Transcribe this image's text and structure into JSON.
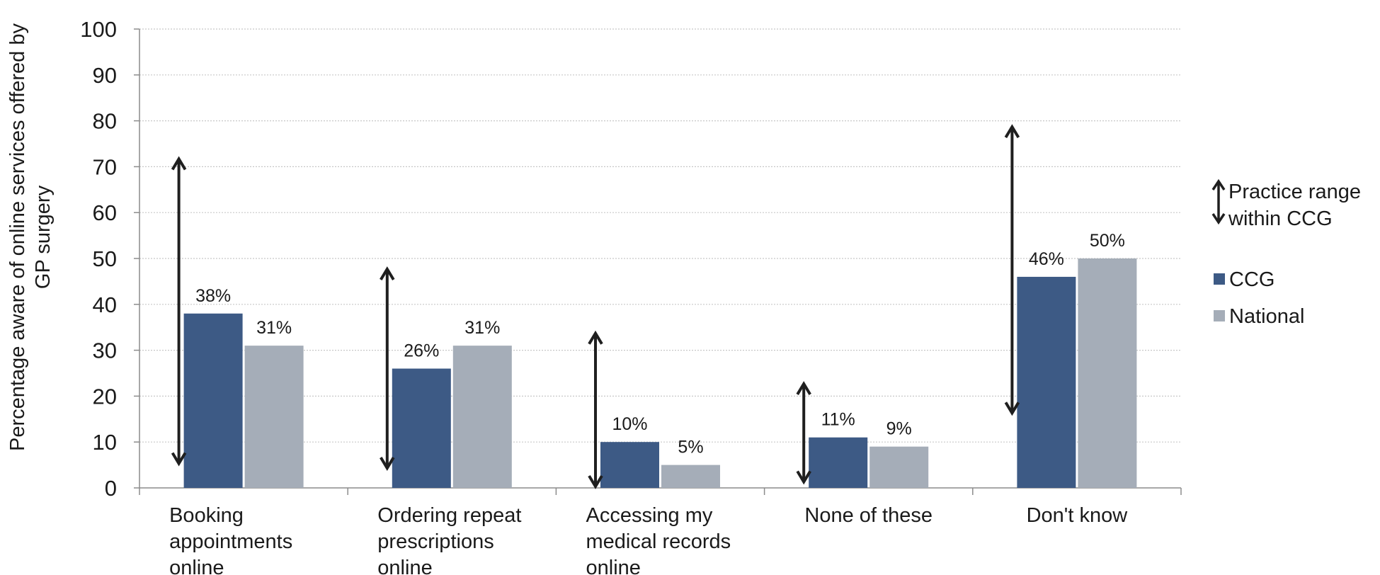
{
  "chart_data": {
    "type": "bar",
    "categories": [
      [
        "Booking",
        "appointments",
        "online"
      ],
      [
        "Ordering repeat",
        "prescriptions",
        "online"
      ],
      [
        "Accessing my",
        "medical records",
        "online"
      ],
      [
        "None of these"
      ],
      [
        "Don't know"
      ]
    ],
    "series": [
      {
        "name": "CCG",
        "values": [
          38,
          26,
          10,
          11,
          46
        ],
        "labels": [
          "38%",
          "26%",
          "10%",
          "11%",
          "46%"
        ],
        "color": "#3d5a85"
      },
      {
        "name": "National",
        "values": [
          31,
          31,
          5,
          9,
          50
        ],
        "labels": [
          "31%",
          "31%",
          "5%",
          "9%",
          "50%"
        ],
        "color": "#a5adb8"
      }
    ],
    "practice_range": [
      [
        5,
        72
      ],
      [
        4,
        48
      ],
      [
        0,
        34
      ],
      [
        1,
        23
      ],
      [
        16,
        79
      ]
    ],
    "ylabel_lines": [
      "Percentage aware of online services offered by",
      "GP surgery"
    ],
    "ylim": [
      0,
      100
    ],
    "yticks": [
      0,
      10,
      20,
      30,
      40,
      50,
      60,
      70,
      80,
      90,
      100
    ],
    "grid": true,
    "legend_position": "right",
    "legend": {
      "range_label_lines": [
        "Practice range",
        "within CCG"
      ],
      "ccg": "CCG",
      "national": "National"
    },
    "colors": {
      "ccg": "#3d5a85",
      "national": "#a5adb8",
      "arrow": "#1f1f1f",
      "grid": "#c8c8c8",
      "axis": "#8c8c8c"
    }
  }
}
